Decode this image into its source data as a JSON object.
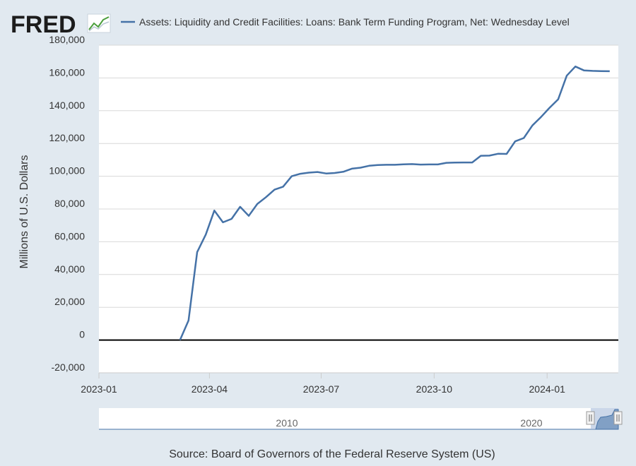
{
  "brand": {
    "logo_text": "FRED",
    "logo_icon": "line-chart-icon"
  },
  "colors": {
    "background": "#e1e9f0",
    "plot_background": "#ffffff",
    "series": "#4572a7",
    "grid": "#d8d8d8",
    "zero_line": "#000000",
    "navigator_fill": "#a9bddb"
  },
  "source": "Source: Board of Governors of the Federal Reserve System (US)",
  "navigator": {
    "labels": [
      {
        "label": "2010",
        "year": 2010
      },
      {
        "label": "2020",
        "year": 2020
      }
    ]
  },
  "chart_data": {
    "type": "line",
    "title": "",
    "xlabel": "",
    "ylabel": "Millions of U.S. Dollars",
    "ylim": [
      -20000,
      180000
    ],
    "yticks": [
      -20000,
      0,
      20000,
      40000,
      60000,
      80000,
      100000,
      120000,
      140000,
      160000,
      180000
    ],
    "ytick_labels": [
      "-20,000",
      "0",
      "20,000",
      "40,000",
      "60,000",
      "80,000",
      "100,000",
      "120,000",
      "140,000",
      "160,000",
      "180,000"
    ],
    "xlim": [
      "2023-01-01",
      "2024-02-28"
    ],
    "xticks": [
      {
        "date": "2023-01-01",
        "label": "2023-01"
      },
      {
        "date": "2023-04-01",
        "label": "2023-04"
      },
      {
        "date": "2023-07-01",
        "label": "2023-07"
      },
      {
        "date": "2023-10-01",
        "label": "2023-10"
      },
      {
        "date": "2024-01-01",
        "label": "2024-01"
      }
    ],
    "grid": true,
    "legend_position": "top",
    "series": [
      {
        "name": "Assets: Liquidity and Credit Facilities: Loans: Bank Term Funding Program, Net: Wednesday Level",
        "x": [
          "2023-03-08",
          "2023-03-15",
          "2023-03-22",
          "2023-03-29",
          "2023-04-05",
          "2023-04-12",
          "2023-04-19",
          "2023-04-26",
          "2023-05-03",
          "2023-05-10",
          "2023-05-17",
          "2023-05-24",
          "2023-05-31",
          "2023-06-07",
          "2023-06-14",
          "2023-06-21",
          "2023-06-28",
          "2023-07-05",
          "2023-07-12",
          "2023-07-19",
          "2023-07-26",
          "2023-08-02",
          "2023-08-09",
          "2023-08-16",
          "2023-08-23",
          "2023-08-30",
          "2023-09-06",
          "2023-09-13",
          "2023-09-20",
          "2023-09-27",
          "2023-10-04",
          "2023-10-11",
          "2023-10-18",
          "2023-10-25",
          "2023-11-01",
          "2023-11-08",
          "2023-11-15",
          "2023-11-22",
          "2023-11-29",
          "2023-12-06",
          "2023-12-13",
          "2023-12-20",
          "2023-12-27",
          "2024-01-03",
          "2024-01-10",
          "2024-01-17",
          "2024-01-24",
          "2024-01-31",
          "2024-02-07",
          "2024-02-14",
          "2024-02-21"
        ],
        "values": [
          0,
          11943,
          53669,
          64403,
          79045,
          71838,
          73981,
          81342,
          75819,
          83066,
          87206,
          91800,
          93600,
          100000,
          101500,
          102200,
          102600,
          101700,
          102000,
          102700,
          104600,
          105200,
          106400,
          106800,
          107000,
          107000,
          107300,
          107400,
          107100,
          107200,
          107200,
          108200,
          108300,
          108400,
          108400,
          112500,
          112600,
          113700,
          113600,
          121300,
          123300,
          131000,
          136100,
          141800,
          147000,
          161400,
          167000,
          164600,
          164300,
          164200,
          164100
        ]
      }
    ]
  }
}
